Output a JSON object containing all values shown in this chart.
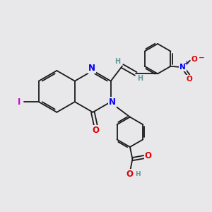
{
  "bg_color": "#e8e8ea",
  "bond_color": "#1a1a1a",
  "N_color": "#0000ee",
  "O_color": "#dd0000",
  "I_color": "#cc00cc",
  "H_color": "#669999",
  "font_size": 7.5,
  "line_width": 1.3,
  "xlim": [
    0,
    10
  ],
  "ylim": [
    0,
    10
  ]
}
